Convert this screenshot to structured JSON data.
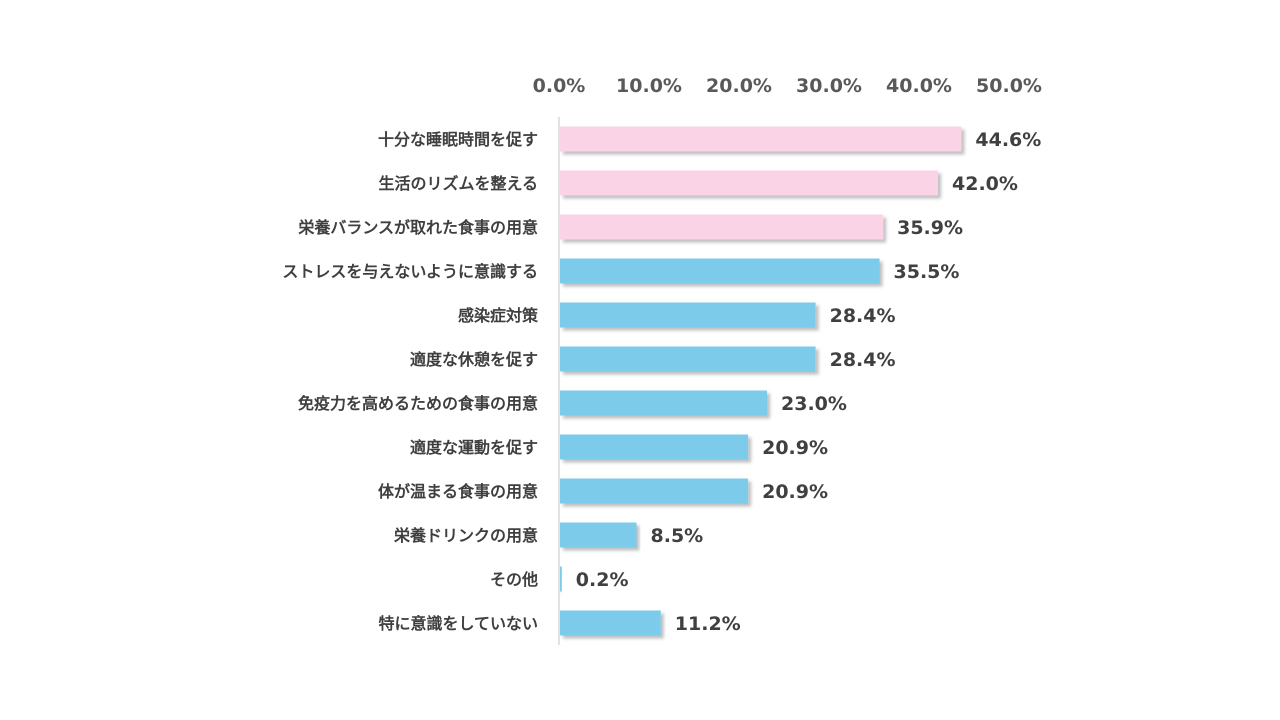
{
  "chart_data": {
    "type": "bar",
    "orientation": "horizontal",
    "title": "",
    "xlabel": "",
    "ylabel": "",
    "xlim": [
      0,
      50
    ],
    "ticks": [
      "0.0%",
      "10.0%",
      "20.0%",
      "30.0%",
      "40.0%",
      "50.0%"
    ],
    "tick_values": [
      0,
      10,
      20,
      30,
      40,
      50
    ],
    "categories": [
      "十分な睡眠時間を促す",
      "生活のリズムを整える",
      "栄養バランスが取れた食事の用意",
      "ストレスを与えないように意識する",
      "感染症対策",
      "適度な休憩を促す",
      "免疫力を高めるための食事の用意",
      "適度な運動を促す",
      "体が温まる食事の用意",
      "栄養ドリンクの用意",
      "その他",
      "特に意識をしていない"
    ],
    "values": [
      44.6,
      42.0,
      35.9,
      35.5,
      28.4,
      28.4,
      23.0,
      20.9,
      20.9,
      8.5,
      0.2,
      11.2
    ],
    "value_labels": [
      "44.6%",
      "42.0%",
      "35.9%",
      "35.5%",
      "28.4%",
      "28.4%",
      "23.0%",
      "20.9%",
      "20.9%",
      "8.5%",
      "0.2%",
      "11.2%"
    ],
    "bar_colors": [
      "#fad4e6",
      "#fad4e6",
      "#fad4e6",
      "#7ccbeb",
      "#7ccbeb",
      "#7ccbeb",
      "#7ccbeb",
      "#7ccbeb",
      "#7ccbeb",
      "#7ccbeb",
      "#7ccbeb",
      "#7ccbeb"
    ],
    "highlight_color": "#fad4e6",
    "base_color": "#7ccbeb",
    "grid": false,
    "legend": "none"
  }
}
